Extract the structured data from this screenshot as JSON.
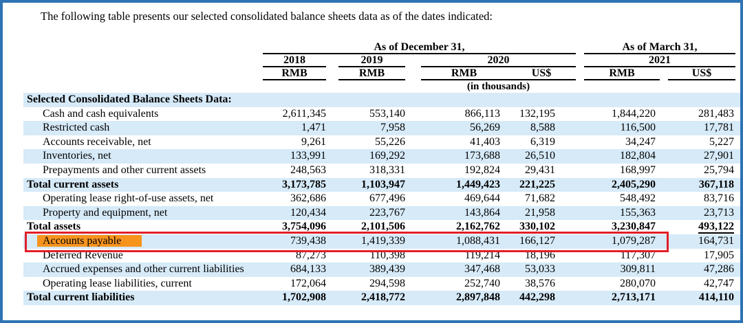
{
  "intro": "The following table presents our selected consolidated balance sheets data as of the dates indicated:",
  "colors": {
    "frame": "#2e74b5",
    "stripe": "#d6eaf8",
    "highlight": "#f7941e",
    "box": "#e21e28"
  },
  "table": {
    "header": {
      "groups": [
        {
          "label": "As of December 31,"
        },
        {
          "label": "As of March 31,"
        }
      ],
      "years": [
        {
          "label": "2018"
        },
        {
          "label": "2019"
        },
        {
          "label": "2020"
        },
        {
          "label": "2021"
        }
      ],
      "currencies": [
        "RMB",
        "RMB",
        "RMB",
        "US$",
        "RMB",
        "US$"
      ],
      "units_note": "(in thousands)"
    },
    "rows": [
      {
        "label": "Selected Consolidated Balance Sheets Data:",
        "style": "section",
        "stripe": true,
        "values": []
      },
      {
        "label": "Cash and cash equivalents",
        "style": "item",
        "stripe": false,
        "values": [
          "2,611,345",
          "553,140",
          "866,113",
          "132,195",
          "1,844,220",
          "281,483"
        ]
      },
      {
        "label": "Restricted cash",
        "style": "item",
        "stripe": true,
        "values": [
          "1,471",
          "7,958",
          "56,269",
          "8,588",
          "116,500",
          "17,781"
        ]
      },
      {
        "label": "Accounts receivable, net",
        "style": "item",
        "stripe": false,
        "values": [
          "9,261",
          "55,226",
          "41,403",
          "6,319",
          "34,247",
          "5,227"
        ]
      },
      {
        "label": "Inventories, net",
        "style": "item",
        "stripe": true,
        "values": [
          "133,991",
          "169,292",
          "173,688",
          "26,510",
          "182,804",
          "27,901"
        ]
      },
      {
        "label": "Prepayments and other current assets",
        "style": "item",
        "stripe": false,
        "values": [
          "248,563",
          "318,331",
          "192,824",
          "29,431",
          "168,997",
          "25,794"
        ]
      },
      {
        "label": "Total current assets",
        "style": "total",
        "stripe": true,
        "values": [
          "3,173,785",
          "1,103,947",
          "1,449,423",
          "221,225",
          "2,405,290",
          "367,118"
        ]
      },
      {
        "label": "Operating lease right-of-use assets, net",
        "style": "item",
        "stripe": false,
        "values": [
          "362,686",
          "677,496",
          "469,644",
          "71,682",
          "548,492",
          "83,716"
        ]
      },
      {
        "label": "Property and equipment, net",
        "style": "item",
        "stripe": true,
        "values": [
          "120,434",
          "223,767",
          "143,864",
          "21,958",
          "155,363",
          "23,713"
        ]
      },
      {
        "label": "Total assets",
        "style": "total",
        "stripe": false,
        "underline": true,
        "values": [
          "3,754,096",
          "2,101,506",
          "2,162,762",
          "330,102",
          "3,230,847",
          "493,122"
        ]
      },
      {
        "label": "Accounts payable",
        "style": "item",
        "stripe": true,
        "highlight": true,
        "values": [
          "739,438",
          "1,419,339",
          "1,088,431",
          "166,127",
          "1,079,287",
          "164,731"
        ]
      },
      {
        "label": "Deferred Revenue",
        "style": "item",
        "stripe": false,
        "values": [
          "87,273",
          "110,398",
          "119,214",
          "18,196",
          "117,307",
          "17,905"
        ]
      },
      {
        "label": "Accrued expenses and other current liabilities",
        "style": "item",
        "stripe": true,
        "wrap": true,
        "values": [
          "684,133",
          "389,439",
          "347,468",
          "53,033",
          "309,811",
          "47,286"
        ]
      },
      {
        "label": "Operating lease liabilities, current",
        "style": "item",
        "stripe": false,
        "values": [
          "172,064",
          "294,598",
          "252,740",
          "38,576",
          "280,070",
          "42,747"
        ]
      },
      {
        "label": "Total current liabilities",
        "style": "total",
        "stripe": true,
        "values": [
          "1,702,908",
          "2,418,772",
          "2,897,848",
          "442,298",
          "2,713,171",
          "414,110"
        ]
      }
    ]
  }
}
